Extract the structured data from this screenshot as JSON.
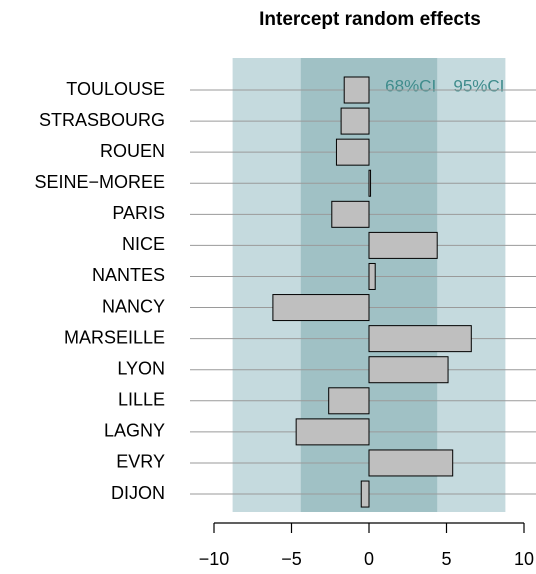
{
  "chart_data": {
    "type": "bar",
    "orientation": "horizontal",
    "title": "Intercept random effects",
    "categories": [
      "TOULOUSE",
      "STRASBOURG",
      "ROUEN",
      "SEINE−MOREE",
      "PARIS",
      "NICE",
      "NANTES",
      "NANCY",
      "MARSEILLE",
      "LYON",
      "LILLE",
      "LAGNY",
      "EVRY",
      "DIJON"
    ],
    "values": [
      -1.6,
      -1.8,
      -2.1,
      0.1,
      -2.4,
      4.4,
      0.4,
      -6.2,
      6.6,
      5.1,
      -2.6,
      -4.7,
      5.4,
      -0.5
    ],
    "color": "#bfbfbf",
    "bands": [
      {
        "name": "95%CI",
        "lim": [
          -8.8,
          8.8
        ],
        "color": "#c5dade"
      },
      {
        "name": "68%CI",
        "lim": [
          -4.4,
          4.4
        ],
        "color": "#a0c1c5"
      }
    ],
    "band_label_color": "#3f8c8c",
    "xlim": [
      -10,
      10
    ],
    "xticks": [
      {
        "value": -10,
        "label": "−10"
      },
      {
        "value": -5,
        "label": "−5"
      },
      0,
      5,
      10
    ],
    "grid": true
  }
}
